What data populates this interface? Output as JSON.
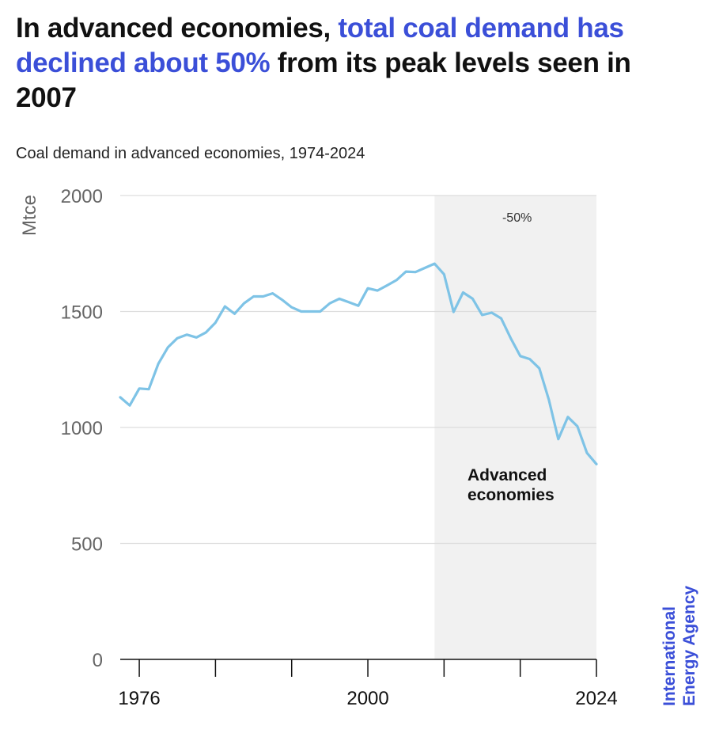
{
  "headline": {
    "part1": "In advanced economies, ",
    "part2": "total coal demand has declined about 50%",
    "part3": " from its peak levels seen in 2007"
  },
  "subtitle": "Coal demand in advanced economies, 1974-2024",
  "brand": {
    "line1": "International",
    "line2": "Energy Agency"
  },
  "colors": {
    "highlight": "#3b4fd8",
    "line": "#7ec3e6",
    "shade": "#f1f1f1",
    "grid": "#dddddd"
  },
  "chart_data": {
    "type": "line",
    "ylabel": "Mtce",
    "ylim": [
      0,
      2000
    ],
    "yticks": [
      0,
      500,
      1000,
      1500,
      2000
    ],
    "xlim": [
      1974,
      2024
    ],
    "xtick_labels": [
      {
        "x": 1976,
        "label": "1976"
      },
      {
        "x": 2000,
        "label": "2000"
      },
      {
        "x": 2024,
        "label": "2024"
      }
    ],
    "xticks_unlabeled": [
      1984,
      1992,
      2008,
      2016
    ],
    "grid": true,
    "shaded_region": {
      "x": [
        2007,
        2024
      ],
      "label": "-50%"
    },
    "series": [
      {
        "name": "Advanced economies",
        "x": [
          1974,
          1975,
          1976,
          1977,
          1978,
          1979,
          1980,
          1981,
          1982,
          1983,
          1984,
          1985,
          1986,
          1987,
          1988,
          1989,
          1990,
          1991,
          1992,
          1993,
          1994,
          1995,
          1996,
          1997,
          1998,
          1999,
          2000,
          2001,
          2002,
          2003,
          2004,
          2005,
          2006,
          2007,
          2008,
          2009,
          2010,
          2011,
          2012,
          2013,
          2014,
          2015,
          2016,
          2017,
          2018,
          2019,
          2020,
          2021,
          2022,
          2023,
          2024
        ],
        "values": [
          1130,
          1095,
          1168,
          1165,
          1275,
          1345,
          1385,
          1400,
          1388,
          1410,
          1452,
          1522,
          1490,
          1535,
          1565,
          1565,
          1578,
          1550,
          1518,
          1500,
          1500,
          1500,
          1535,
          1555,
          1540,
          1525,
          1600,
          1590,
          1612,
          1635,
          1672,
          1670,
          1688,
          1706,
          1660,
          1498,
          1582,
          1555,
          1485,
          1495,
          1470,
          1385,
          1308,
          1295,
          1255,
          1120,
          950,
          1045,
          1005,
          890,
          842
        ]
      }
    ]
  }
}
